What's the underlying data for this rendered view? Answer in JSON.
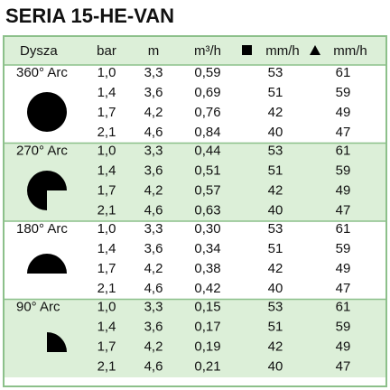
{
  "title": "SERIA 15-HE-VAN",
  "table": {
    "header": [
      "Dysza",
      "bar",
      "m",
      "m³/h",
      "mm/h",
      "mm/h"
    ],
    "groups": [
      {
        "label": "360° Arc",
        "rows": [
          [
            "1,0",
            "3,3",
            "0,59",
            "53",
            "61"
          ],
          [
            "1,4",
            "3,6",
            "0,69",
            "51",
            "59"
          ],
          [
            "1,7",
            "4,2",
            "0,76",
            "42",
            "49"
          ],
          [
            "2,1",
            "4,6",
            "0,84",
            "40",
            "47"
          ]
        ]
      },
      {
        "label": "270° Arc",
        "rows": [
          [
            "1,0",
            "3,3",
            "0,44",
            "53",
            "61"
          ],
          [
            "1,4",
            "3,6",
            "0,51",
            "51",
            "59"
          ],
          [
            "1,7",
            "4,2",
            "0,57",
            "42",
            "49"
          ],
          [
            "2,1",
            "4,6",
            "0,63",
            "40",
            "47"
          ]
        ]
      },
      {
        "label": "180° Arc",
        "rows": [
          [
            "1,0",
            "3,3",
            "0,30",
            "53",
            "61"
          ],
          [
            "1,4",
            "3,6",
            "0,34",
            "51",
            "59"
          ],
          [
            "1,7",
            "4,2",
            "0,38",
            "42",
            "49"
          ],
          [
            "2,1",
            "4,6",
            "0,42",
            "40",
            "47"
          ]
        ]
      },
      {
        "label": "90° Arc",
        "rows": [
          [
            "1,0",
            "3,3",
            "0,15",
            "53",
            "61"
          ],
          [
            "1,4",
            "3,6",
            "0,17",
            "51",
            "59"
          ],
          [
            "1,7",
            "4,2",
            "0,19",
            "42",
            "49"
          ],
          [
            "2,1",
            "4,6",
            "0,21",
            "40",
            "47"
          ]
        ]
      }
    ]
  }
}
